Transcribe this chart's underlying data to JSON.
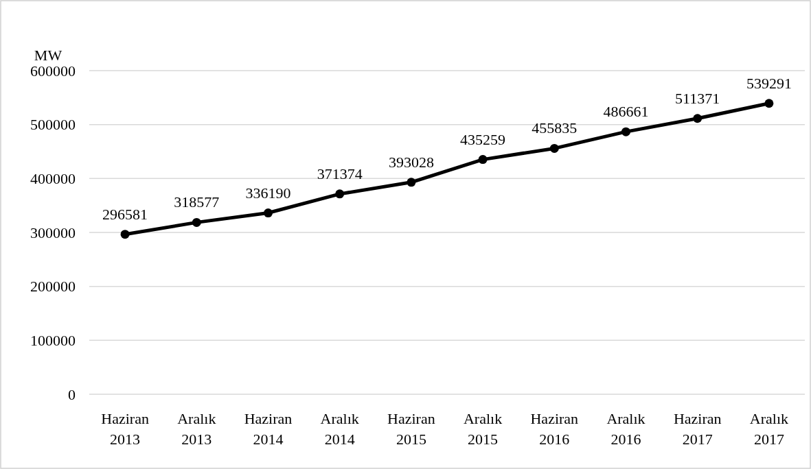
{
  "chart_data": {
    "type": "line",
    "ylabel": "MW",
    "categories": [
      "Haziran 2013",
      "Aralık 2013",
      "Haziran 2014",
      "Aralık 2014",
      "Haziran 2015",
      "Aralık 2015",
      "Haziran 2016",
      "Aralık 2016",
      "Haziran 2017",
      "Aralık 2017"
    ],
    "series": [
      {
        "color": "#000000",
        "values": [
          296581,
          318577,
          336190,
          371374,
          393028,
          435259,
          455835,
          486661,
          511371,
          539291
        ]
      }
    ],
    "ylim": [
      0,
      600000
    ],
    "yticks": [
      0,
      100000,
      200000,
      300000,
      400000,
      500000,
      600000
    ],
    "grid": "y",
    "marker": "circle",
    "line_style": "solid",
    "data_labels": true
  }
}
